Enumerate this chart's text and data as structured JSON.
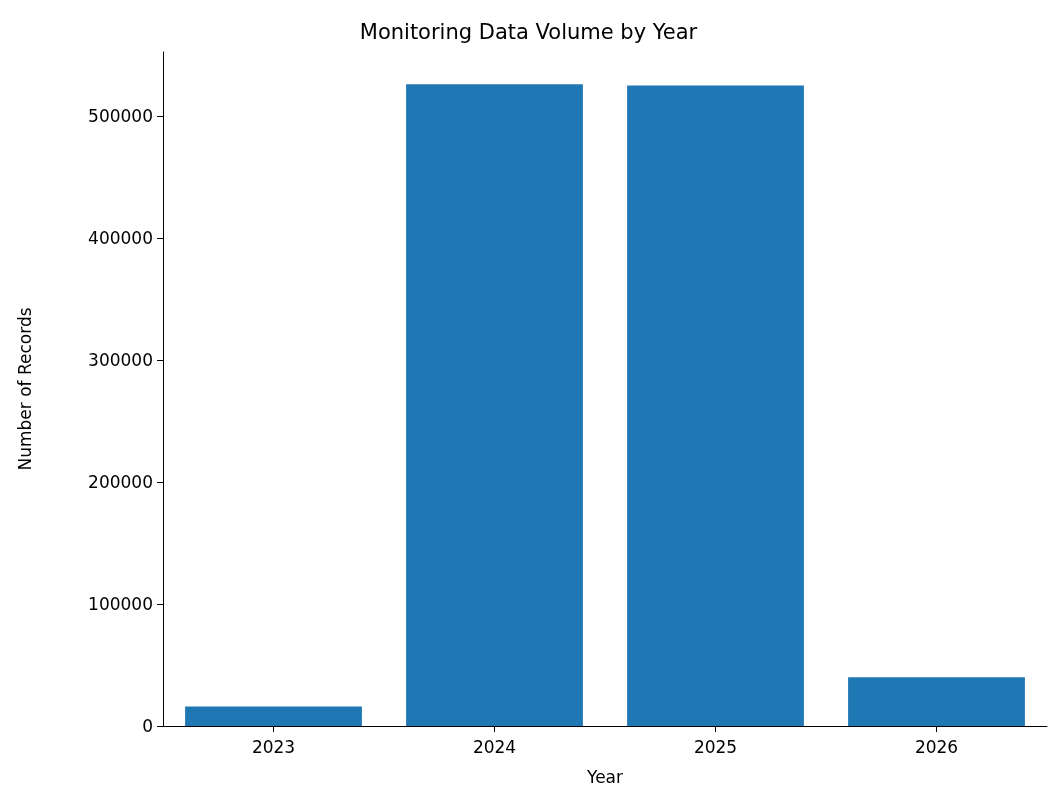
{
  "chart_data": {
    "type": "bar",
    "title": "Monitoring Data Volume by Year",
    "xlabel": "Year",
    "ylabel": "Number of Records",
    "categories": [
      "2023",
      "2024",
      "2025",
      "2026"
    ],
    "values": [
      16000,
      526000,
      525000,
      40000
    ],
    "color": "#1f77b4",
    "ylim": [
      0,
      552500
    ],
    "yticks": [
      0,
      100000,
      200000,
      300000,
      400000,
      500000
    ],
    "grid": false
  }
}
